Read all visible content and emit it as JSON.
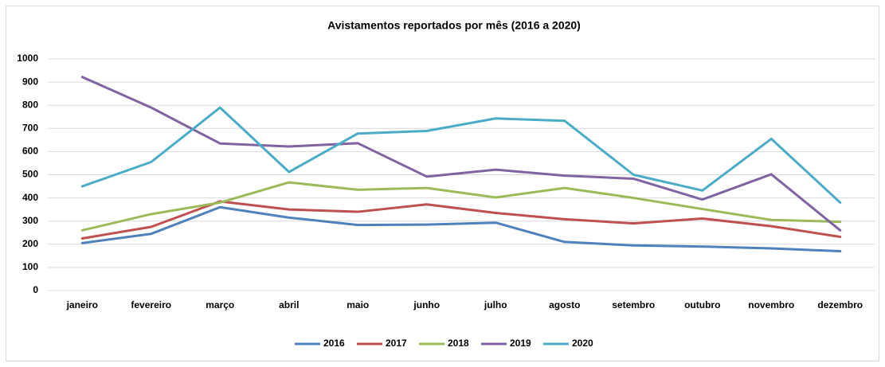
{
  "chart_data": {
    "type": "line",
    "title": "Avistamentos reportados por mês (2016 a 2020)",
    "categories": [
      "janeiro",
      "fevereiro",
      "março",
      "abril",
      "maio",
      "junho",
      "julho",
      "agosto",
      "setembro",
      "outubro",
      "novembro",
      "dezembro"
    ],
    "series": [
      {
        "name": "2016",
        "color": "#4f81bd",
        "values": [
          205,
          245,
          360,
          315,
          283,
          285,
          293,
          210,
          195,
          190,
          182,
          170
        ]
      },
      {
        "name": "2017",
        "color": "#c0504d",
        "values": [
          225,
          275,
          385,
          350,
          340,
          372,
          335,
          308,
          290,
          311,
          278,
          232
        ]
      },
      {
        "name": "2018",
        "color": "#9bbb59",
        "values": [
          260,
          330,
          380,
          467,
          435,
          443,
          402,
          443,
          400,
          352,
          305,
          297
        ]
      },
      {
        "name": "2019",
        "color": "#8064a2",
        "values": [
          922,
          790,
          635,
          622,
          636,
          492,
          522,
          496,
          483,
          393,
          502,
          260
        ]
      },
      {
        "name": "2020",
        "color": "#4bacc6",
        "values": [
          450,
          555,
          790,
          512,
          678,
          689,
          743,
          733,
          500,
          432,
          655,
          380
        ]
      }
    ],
    "ylim": [
      0,
      1000
    ],
    "yticks": [
      0,
      100,
      200,
      300,
      400,
      500,
      600,
      700,
      800,
      900,
      1000
    ],
    "grid": true,
    "legend": "bottom"
  }
}
